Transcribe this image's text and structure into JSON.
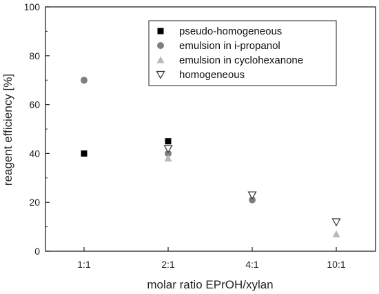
{
  "chart_data": {
    "type": "scatter",
    "categories": [
      "1:1",
      "2:1",
      "4:1",
      "10:1"
    ],
    "xlabel": "molar ratio EPrOH/xylan",
    "ylabel": "reagent efficiency [%]",
    "ylim": [
      0,
      100
    ],
    "yticks": [
      "0",
      "20",
      "40",
      "60",
      "80",
      "100"
    ],
    "grid": false,
    "legend_position": "top-right",
    "series": [
      {
        "name": "pseudo-homogeneous",
        "marker": "square",
        "color": "#000000",
        "values": [
          40,
          45,
          null,
          null
        ]
      },
      {
        "name": "emulsion in i-propanol",
        "marker": "circle",
        "color": "#7f7f7f",
        "values": [
          70,
          40,
          21,
          null
        ]
      },
      {
        "name": "emulsion in cyclohexanone",
        "marker": "triangle-up",
        "color": "#b9b9b9",
        "values": [
          null,
          38,
          null,
          7
        ]
      },
      {
        "name": "homogeneous",
        "marker": "triangle-down-open",
        "color": "#333333",
        "values": [
          null,
          42,
          23,
          12
        ]
      }
    ]
  }
}
